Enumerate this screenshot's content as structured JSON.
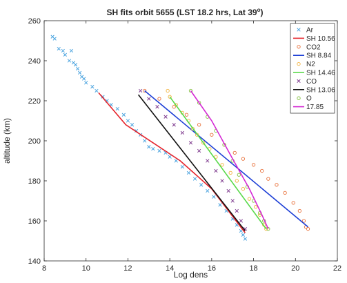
{
  "chart_data": {
    "type": "line",
    "title": "SH fits orbit 5655 (LST 18.2 hrs, Lat 39",
    "title_sup": "o",
    "title_close": ")",
    "xlabel": "Log dens",
    "ylabel": "altitude (km)",
    "xlim": [
      8,
      22
    ],
    "ylim": [
      140,
      260
    ],
    "xticks": [
      8,
      10,
      12,
      14,
      16,
      18,
      20,
      22
    ],
    "yticks": [
      140,
      160,
      180,
      200,
      220,
      240,
      260
    ],
    "grid": false,
    "legend_position": "top-right",
    "series": [
      {
        "name": "Ar",
        "kind": "scatter",
        "marker": "x",
        "color": "#4aa3df",
        "points": [
          [
            8.4,
            252
          ],
          [
            8.5,
            251
          ],
          [
            8.7,
            246
          ],
          [
            8.9,
            245
          ],
          [
            9.0,
            243
          ],
          [
            9.2,
            240
          ],
          [
            9.3,
            245
          ],
          [
            9.4,
            239
          ],
          [
            9.5,
            238
          ],
          [
            9.6,
            236
          ],
          [
            9.7,
            234
          ],
          [
            9.8,
            232
          ],
          [
            9.9,
            231
          ],
          [
            10.0,
            229
          ],
          [
            10.3,
            227
          ],
          [
            10.5,
            225
          ],
          [
            10.8,
            222
          ],
          [
            11.0,
            220
          ],
          [
            11.2,
            218
          ],
          [
            11.5,
            216
          ],
          [
            11.8,
            213
          ],
          [
            12.0,
            210
          ],
          [
            12.2,
            208
          ],
          [
            12.4,
            205
          ],
          [
            12.6,
            203
          ],
          [
            12.8,
            200
          ],
          [
            13.0,
            197
          ],
          [
            13.2,
            196
          ],
          [
            13.5,
            195
          ],
          [
            13.8,
            194
          ],
          [
            14.0,
            192
          ],
          [
            14.3,
            190
          ],
          [
            14.6,
            187
          ],
          [
            14.9,
            184
          ],
          [
            15.2,
            181
          ],
          [
            15.5,
            178
          ],
          [
            15.8,
            175
          ],
          [
            16.1,
            172
          ],
          [
            16.4,
            168
          ],
          [
            16.7,
            165
          ],
          [
            17.0,
            161
          ],
          [
            17.2,
            158
          ],
          [
            17.4,
            155
          ],
          [
            17.5,
            153
          ],
          [
            17.6,
            151
          ]
        ]
      },
      {
        "name": "SH 10.56",
        "kind": "line",
        "color": "#e5232b",
        "points": [
          [
            10.6,
            224
          ],
          [
            11.9,
            208
          ],
          [
            13.2,
            199
          ],
          [
            14.5,
            190
          ],
          [
            16.0,
            176
          ],
          [
            17.6,
            154
          ]
        ]
      },
      {
        "name": "CO2",
        "kind": "scatter",
        "marker": "o",
        "color": "#e8703a",
        "points": [
          [
            12.8,
            225
          ],
          [
            13.5,
            221
          ],
          [
            14.2,
            217
          ],
          [
            14.8,
            213
          ],
          [
            15.4,
            208
          ],
          [
            16.0,
            203
          ],
          [
            16.6,
            198
          ],
          [
            17.1,
            194
          ],
          [
            17.5,
            191
          ],
          [
            18.0,
            188
          ],
          [
            18.4,
            185
          ],
          [
            18.7,
            181
          ],
          [
            19.1,
            178
          ],
          [
            19.5,
            174
          ],
          [
            19.9,
            169
          ],
          [
            20.2,
            165
          ],
          [
            20.4,
            160
          ],
          [
            20.5,
            157
          ],
          [
            20.6,
            156
          ]
        ]
      },
      {
        "name": "SH 8.84",
        "kind": "line",
        "color": "#1d3fd6",
        "points": [
          [
            12.8,
            225
          ],
          [
            20.6,
            157
          ]
        ]
      },
      {
        "name": "N2",
        "kind": "scatter",
        "marker": "o",
        "color": "#f2b33d",
        "points": [
          [
            13.9,
            225
          ],
          [
            14.0,
            222
          ],
          [
            14.3,
            218
          ],
          [
            14.6,
            214
          ],
          [
            14.9,
            210
          ],
          [
            15.1,
            206
          ],
          [
            15.3,
            203
          ],
          [
            15.6,
            199
          ],
          [
            15.9,
            196
          ],
          [
            16.2,
            192
          ],
          [
            16.5,
            188
          ],
          [
            16.9,
            184
          ],
          [
            17.2,
            180
          ],
          [
            17.5,
            176
          ],
          [
            17.8,
            171
          ],
          [
            18.1,
            167
          ],
          [
            18.3,
            163
          ],
          [
            18.5,
            158
          ],
          [
            18.6,
            156
          ]
        ]
      },
      {
        "name": "SH 14.46",
        "kind": "line",
        "color": "#59d94a",
        "points": [
          [
            14.0,
            222
          ],
          [
            18.6,
            156
          ]
        ]
      },
      {
        "name": "CO",
        "kind": "scatter",
        "marker": "x",
        "color": "#7e3a8e",
        "points": [
          [
            12.6,
            225
          ],
          [
            13.0,
            221
          ],
          [
            13.4,
            217
          ],
          [
            13.8,
            212
          ],
          [
            14.2,
            208
          ],
          [
            14.6,
            204
          ],
          [
            15.0,
            199
          ],
          [
            15.4,
            195
          ],
          [
            15.8,
            190
          ],
          [
            16.2,
            185
          ],
          [
            16.5,
            180
          ],
          [
            16.8,
            175
          ],
          [
            17.0,
            170
          ],
          [
            17.2,
            165
          ],
          [
            17.4,
            160
          ],
          [
            17.6,
            156
          ]
        ]
      },
      {
        "name": "SH 13.06",
        "kind": "line",
        "color": "#111111",
        "points": [
          [
            12.5,
            223
          ],
          [
            17.6,
            155
          ]
        ]
      },
      {
        "name": "O",
        "kind": "scatter",
        "marker": "o",
        "color": "#83bf3f",
        "points": [
          [
            15.0,
            225
          ],
          [
            15.4,
            219
          ],
          [
            15.8,
            212
          ],
          [
            16.2,
            205
          ],
          [
            16.6,
            198
          ],
          [
            17.0,
            190
          ],
          [
            17.3,
            183
          ],
          [
            17.7,
            177
          ],
          [
            18.0,
            170
          ],
          [
            18.3,
            164
          ],
          [
            18.5,
            160
          ],
          [
            18.7,
            156
          ]
        ]
      },
      {
        "name": "17.85",
        "kind": "line",
        "color": "#d428d4",
        "points": [
          [
            15.0,
            225
          ],
          [
            16.0,
            210
          ],
          [
            17.0,
            191
          ],
          [
            17.8,
            176
          ],
          [
            18.4,
            163
          ],
          [
            18.7,
            156
          ]
        ]
      }
    ]
  }
}
